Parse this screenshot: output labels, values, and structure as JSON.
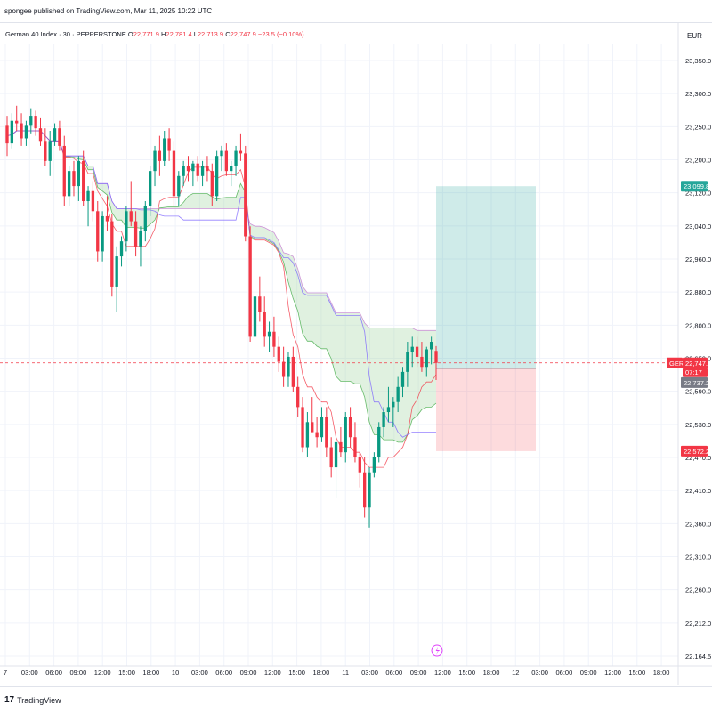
{
  "header": {
    "publisher": "spongee published on TradingView.com, Mar 11, 2025 10:22 UTC"
  },
  "legend": {
    "symbol": "German 40 Index · 30 · PEPPERSTONE",
    "o_label": "O",
    "o": "22,771.9",
    "h_label": "H",
    "h": "22,781.4",
    "l_label": "L",
    "l": "22,713.9",
    "c_label": "C",
    "c": "22,747.9",
    "change": "−23.5 (−0.10%)"
  },
  "currency": "EUR",
  "footer": {
    "brand": "TradingView"
  },
  "colors": {
    "up": "#089981",
    "down": "#f23645",
    "cloud_bull": "#a5d6a7",
    "cloud_bear": "#ce93d8",
    "kijun": "#7b61ff",
    "tenkan": "#f23645",
    "target": "#26a69a",
    "stop": "#f23645",
    "current_price": "#f23645"
  },
  "chart_data": {
    "type": "candlestick",
    "symbol": "German 40 Index · 30 · PEPPERSTONE",
    "currency": "EUR",
    "ylim": [
      22164.5,
      23350
    ],
    "y_ticks": [
      "23,350.0",
      "23,300.0",
      "23,250.0",
      "23,200.0",
      "23,120.0",
      "23,040.0",
      "22,960.0",
      "22,880.0",
      "22,800.0",
      "22,650.0",
      "22,590.0",
      "22,530.0",
      "22,470.0",
      "22,410.0",
      "22,360.0",
      "22,310.0",
      "22,260.0",
      "22,212.0",
      "22,164.5"
    ],
    "x_ticks": [
      "7",
      "03:00",
      "06:00",
      "09:00",
      "12:00",
      "15:00",
      "18:00",
      "10",
      "03:00",
      "06:00",
      "09:00",
      "12:00",
      "15:00",
      "18:00",
      "11",
      "03:00",
      "06:00",
      "09:00",
      "12:00",
      "15:00",
      "18:00",
      "12",
      "03:00",
      "06:00",
      "09:00",
      "12:00",
      "15:00",
      "18:00"
    ],
    "price_labels": {
      "target": "23,099.8",
      "current_symbol": "GER40",
      "current": "22,747.9",
      "countdown": "07:17",
      "entry": "22,737.2",
      "stop": "22,572.2"
    },
    "position": {
      "entry": 22737.2,
      "target": 23099.8,
      "stop": 22572.2
    },
    "candles": [
      [
        23220,
        23240,
        23160,
        23185
      ],
      [
        23185,
        23245,
        23175,
        23230
      ],
      [
        23230,
        23260,
        23210,
        23225
      ],
      [
        23225,
        23245,
        23180,
        23195
      ],
      [
        23195,
        23230,
        23180,
        23220
      ],
      [
        23220,
        23255,
        23205,
        23240
      ],
      [
        23240,
        23250,
        23200,
        23215
      ],
      [
        23215,
        23235,
        23180,
        23190
      ],
      [
        23190,
        23215,
        23140,
        23150
      ],
      [
        23150,
        23210,
        23120,
        23190
      ],
      [
        23190,
        23225,
        23180,
        23215
      ],
      [
        23215,
        23230,
        23170,
        23180
      ],
      [
        23180,
        23200,
        23060,
        23080
      ],
      [
        23080,
        23140,
        23060,
        23130
      ],
      [
        23130,
        23150,
        23080,
        23100
      ],
      [
        23100,
        23160,
        23070,
        23150
      ],
      [
        23150,
        23170,
        23060,
        23070
      ],
      [
        23070,
        23100,
        23020,
        23090
      ],
      [
        23090,
        23110,
        23030,
        23050
      ],
      [
        23050,
        23070,
        22950,
        22970
      ],
      [
        22970,
        23050,
        22950,
        23040
      ],
      [
        23040,
        23080,
        23010,
        23030
      ],
      [
        23030,
        23045,
        22880,
        22900
      ],
      [
        22900,
        22980,
        22850,
        22960
      ],
      [
        22960,
        23000,
        22940,
        22990
      ],
      [
        22990,
        23060,
        22970,
        23050
      ],
      [
        23050,
        23110,
        23020,
        23030
      ],
      [
        23030,
        23050,
        22960,
        22980
      ],
      [
        22980,
        23020,
        22940,
        23010
      ],
      [
        23010,
        23070,
        22990,
        23060
      ],
      [
        23060,
        23140,
        23040,
        23130
      ],
      [
        23130,
        23180,
        23100,
        23170
      ],
      [
        23170,
        23200,
        23120,
        23150
      ],
      [
        23150,
        23210,
        23140,
        23195
      ],
      [
        23195,
        23215,
        23150,
        23170
      ],
      [
        23170,
        23190,
        23060,
        23080
      ],
      [
        23080,
        23130,
        23060,
        23120
      ],
      [
        23120,
        23150,
        23100,
        23140
      ],
      [
        23140,
        23160,
        23110,
        23130
      ],
      [
        23130,
        23150,
        23100,
        23145
      ],
      [
        23145,
        23160,
        23110,
        23120
      ],
      [
        23120,
        23150,
        23100,
        23140
      ],
      [
        23140,
        23160,
        23110,
        23130
      ],
      [
        23130,
        23145,
        23060,
        23080
      ],
      [
        23080,
        23170,
        23070,
        23160
      ],
      [
        23160,
        23180,
        23130,
        23170
      ],
      [
        23170,
        23185,
        23120,
        23130
      ],
      [
        23130,
        23150,
        23100,
        23140
      ],
      [
        23140,
        23180,
        23120,
        23170
      ],
      [
        23170,
        23205,
        23150,
        23165
      ],
      [
        23165,
        23180,
        22990,
        23000
      ],
      [
        23000,
        23020,
        22790,
        22800
      ],
      [
        22800,
        22900,
        22780,
        22880
      ],
      [
        22880,
        22920,
        22830,
        22850
      ],
      [
        22850,
        22880,
        22780,
        22800
      ],
      [
        22800,
        22830,
        22770,
        22810
      ],
      [
        22810,
        22840,
        22760,
        22780
      ],
      [
        22780,
        22800,
        22730,
        22750
      ],
      [
        22750,
        22780,
        22700,
        22720
      ],
      [
        22720,
        22770,
        22700,
        22760
      ],
      [
        22760,
        22780,
        22690,
        22700
      ],
      [
        22700,
        22720,
        22640,
        22660
      ],
      [
        22660,
        22680,
        22570,
        22580
      ],
      [
        22580,
        22650,
        22560,
        22630
      ],
      [
        22630,
        22680,
        22610,
        22610
      ],
      [
        22610,
        22640,
        22580,
        22600
      ],
      [
        22600,
        22660,
        22590,
        22640
      ],
      [
        22640,
        22660,
        22560,
        22580
      ],
      [
        22580,
        22600,
        22520,
        22540
      ],
      [
        22540,
        22600,
        22480,
        22590
      ],
      [
        22590,
        22620,
        22560,
        22570
      ],
      [
        22570,
        22650,
        22550,
        22640
      ],
      [
        22640,
        22660,
        22580,
        22600
      ],
      [
        22600,
        22630,
        22550,
        22560
      ],
      [
        22560,
        22570,
        22500,
        22530
      ],
      [
        22530,
        22560,
        22440,
        22460
      ],
      [
        22460,
        22540,
        22420,
        22530
      ],
      [
        22530,
        22570,
        22520,
        22560
      ],
      [
        22560,
        22630,
        22550,
        22620
      ],
      [
        22620,
        22660,
        22600,
        22650
      ],
      [
        22650,
        22700,
        22630,
        22660
      ],
      [
        22660,
        22680,
        22620,
        22670
      ],
      [
        22670,
        22720,
        22650,
        22700
      ],
      [
        22700,
        22740,
        22680,
        22730
      ],
      [
        22730,
        22790,
        22700,
        22770
      ],
      [
        22770,
        22800,
        22740,
        22780
      ],
      [
        22780,
        22800,
        22740,
        22760
      ],
      [
        22760,
        22790,
        22730,
        22740
      ],
      [
        22740,
        22780,
        22720,
        22775
      ],
      [
        22775,
        22800,
        22745,
        22790
      ],
      [
        22771.9,
        22781.4,
        22713.9,
        22747.9
      ]
    ]
  }
}
